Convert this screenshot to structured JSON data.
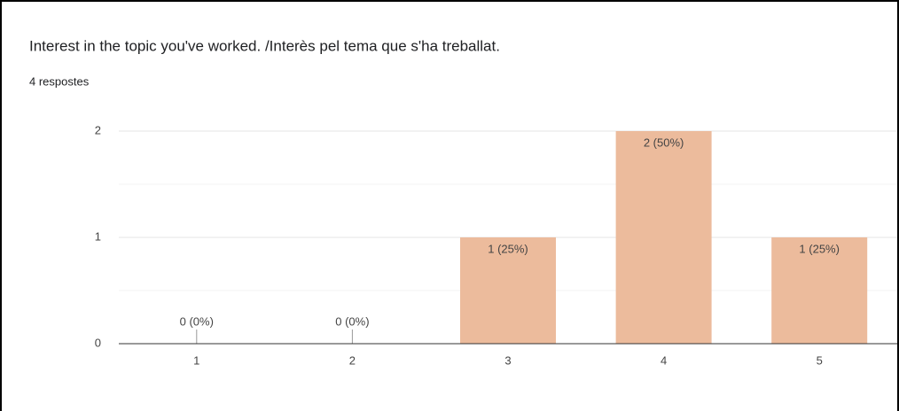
{
  "chart_data": {
    "type": "bar",
    "title": "Interest in the topic you've worked. /Interès pel tema que s'ha treballat.",
    "subtitle": "4 respostes",
    "categories": [
      "1",
      "2",
      "3",
      "4",
      "5"
    ],
    "values": [
      0,
      0,
      1,
      2,
      1
    ],
    "value_labels": [
      "0 (0%)",
      "0 (0%)",
      "1 (25%)",
      "2 (50%)",
      "1 (25%)"
    ],
    "color": "#ecbb9c",
    "ylim": [
      0,
      2
    ],
    "yticks": [
      0,
      1,
      2
    ],
    "minor_yticks": [
      0.5,
      1.5
    ],
    "grid": true
  }
}
